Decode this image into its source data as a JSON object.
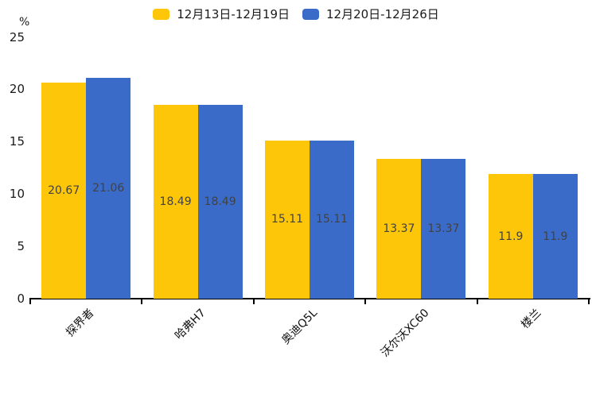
{
  "chart": {
    "unit_label": "%"
  },
  "legend": {
    "items": [
      {
        "label": "12月13日-12月19日",
        "color": "#FDC609"
      },
      {
        "label": "12月20日-12月26日",
        "color": "#3A6BC9"
      }
    ]
  },
  "chart_data": {
    "type": "bar",
    "categories": [
      "探界者",
      "哈弗H7",
      "奥迪Q5L",
      "沃尔沃XC60",
      "楼兰"
    ],
    "series": [
      {
        "name": "12月13日-12月19日",
        "color": "#FDC609",
        "values": [
          20.67,
          18.49,
          15.11,
          13.37,
          11.9
        ]
      },
      {
        "name": "12月20日-12月26日",
        "color": "#3A6BC9",
        "values": [
          21.06,
          18.49,
          15.11,
          13.37,
          11.9
        ]
      }
    ],
    "title": "",
    "xlabel": "",
    "ylabel": "%",
    "ylim": [
      0,
      25
    ],
    "yticks": [
      0,
      5,
      10,
      15,
      20,
      25
    ],
    "grid": false,
    "legend_position": "top",
    "value_label_position": "inside-center",
    "value_label_color": "#424242",
    "axis_color": "#000000",
    "tick_label_color": "#1a1a1a"
  }
}
